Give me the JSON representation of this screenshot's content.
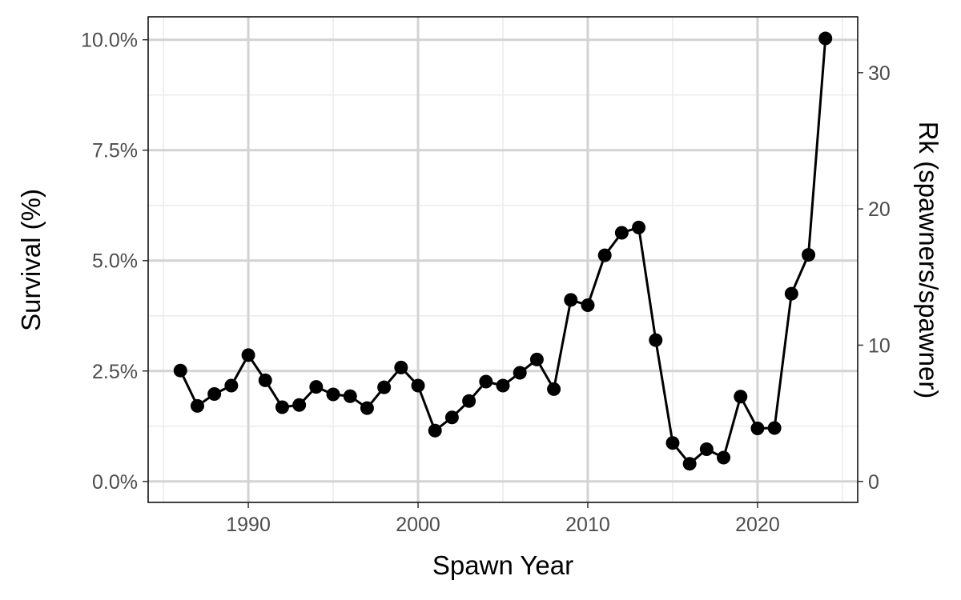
{
  "chart_data": {
    "type": "line",
    "xlabel": "Spawn Year",
    "ylabel": "Survival (%)",
    "y2label": "Rk (spawners/spawner)",
    "xlim": [
      1984.1,
      2025.9
    ],
    "ylim": [
      -0.00475,
      0.1052
    ],
    "y2lim": [
      -1.54,
      34.1
    ],
    "x_ticks": [
      1990,
      2000,
      2010,
      2020
    ],
    "y_ticks": [
      0,
      0.025,
      0.05,
      0.075,
      0.1
    ],
    "y_tick_labels": [
      "0.0%",
      "2.5%",
      "5.0%",
      "7.5%",
      "10.0%"
    ],
    "y2_ticks": [
      0,
      10,
      20,
      30
    ],
    "y2_tick_labels": [
      "0",
      "10",
      "20",
      "30"
    ],
    "grid": true,
    "colors": {
      "line": "#000000",
      "point": "#000000",
      "grid_major": "#d3d3d3",
      "grid_minor": "#ebebeb"
    },
    "series": [
      {
        "x": [
          1986,
          1987,
          1988,
          1989,
          1990,
          1991,
          1992,
          1993,
          1994,
          1995,
          1996,
          1997,
          1998,
          1999,
          2000,
          2001,
          2002,
          2003,
          2004,
          2005,
          2006,
          2007,
          2008,
          2009,
          2010,
          2011,
          2012,
          2013,
          2014,
          2015,
          2016,
          2017,
          2018,
          2019,
          2020,
          2021,
          2022,
          2023,
          2024
        ],
        "values": [
          0.0251,
          0.0171,
          0.0198,
          0.0217,
          0.0286,
          0.0229,
          0.0168,
          0.0173,
          0.0214,
          0.0197,
          0.0193,
          0.0166,
          0.0213,
          0.0258,
          0.0217,
          0.0115,
          0.0145,
          0.0182,
          0.0226,
          0.0217,
          0.0246,
          0.0276,
          0.0209,
          0.0411,
          0.0399,
          0.0512,
          0.0563,
          0.0575,
          0.032,
          0.0087,
          0.004,
          0.0073,
          0.0054,
          0.0192,
          0.012,
          0.0121,
          0.0425,
          0.0513,
          0.1003
        ]
      }
    ]
  }
}
